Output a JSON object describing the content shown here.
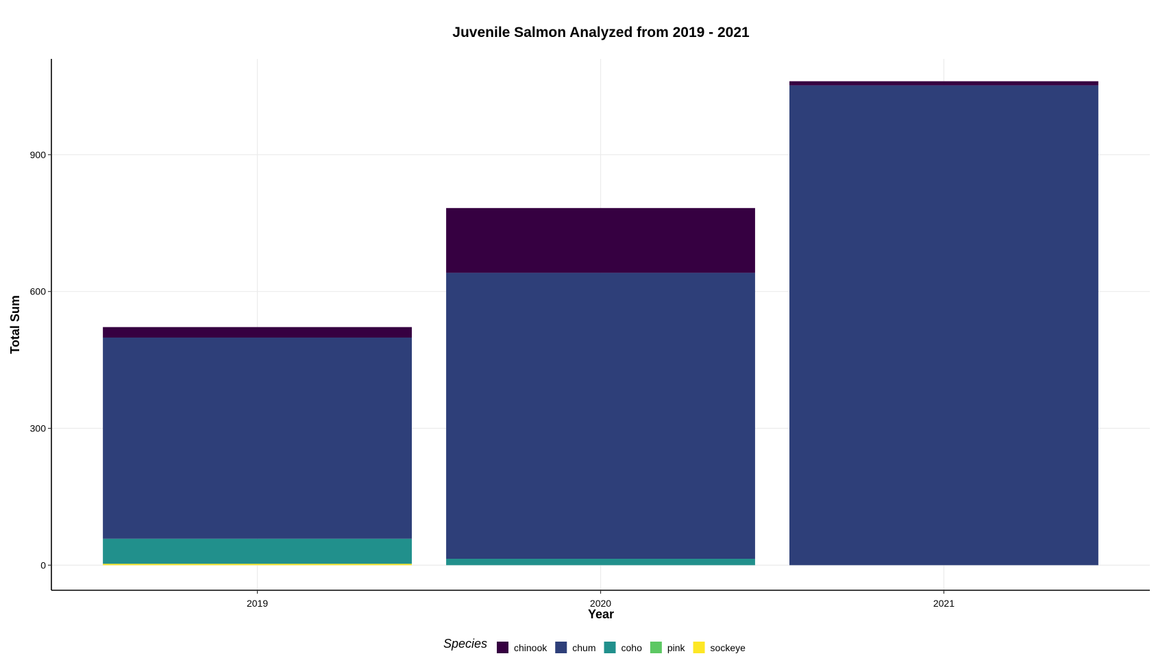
{
  "chart_data": {
    "type": "bar",
    "stacked": true,
    "title": "Juvenile Salmon Analyzed from 2019 - 2021",
    "xlabel": "Year",
    "ylabel": "Total Sum",
    "categories": [
      "2019",
      "2020",
      "2021"
    ],
    "ylim": [
      -55,
      1110
    ],
    "yticks": [
      0,
      300,
      600,
      900
    ],
    "grid": true,
    "legend": {
      "title": "Species",
      "position": "bottom"
    },
    "series": [
      {
        "name": "sockeye",
        "color": "#FDE725",
        "values": [
          3,
          0,
          0
        ]
      },
      {
        "name": "pink",
        "color": "#5DC863",
        "values": [
          0,
          0,
          0
        ]
      },
      {
        "name": "coho",
        "color": "#21908C",
        "values": [
          55,
          14,
          0
        ]
      },
      {
        "name": "chum",
        "color": "#2E3F79",
        "values": [
          441,
          627,
          1052
        ]
      },
      {
        "name": "chinook",
        "color": "#360041",
        "values": [
          23,
          142,
          9
        ]
      }
    ],
    "legend_order": [
      "chinook",
      "chum",
      "coho",
      "pink",
      "sockeye"
    ]
  }
}
